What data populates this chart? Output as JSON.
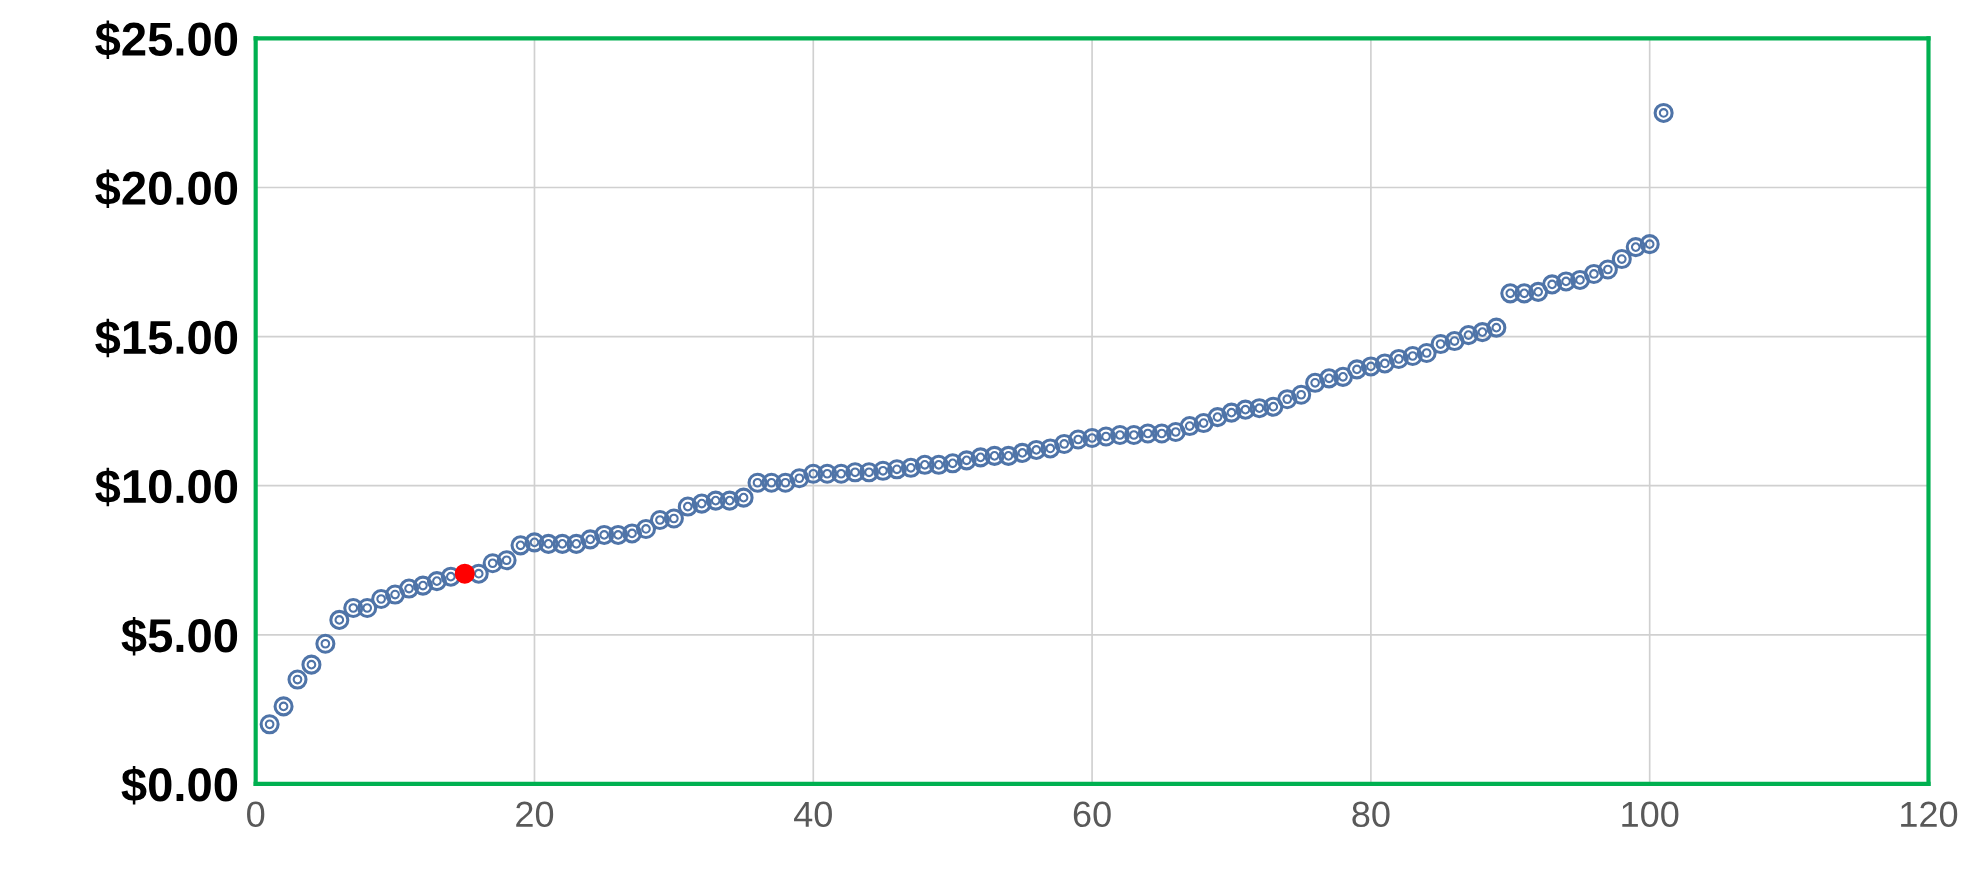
{
  "chart_data": {
    "type": "scatter",
    "marker": "circle",
    "grid": true,
    "xlim": [
      0,
      120
    ],
    "xticks": [
      0,
      20,
      40,
      60,
      80,
      100,
      120
    ],
    "ylim": [
      0,
      25
    ],
    "yticks": [
      {
        "value": 0,
        "label": "$0.00"
      },
      {
        "value": 5,
        "label": "$5.00"
      },
      {
        "value": 10,
        "label": "$10.00"
      },
      {
        "value": 15,
        "label": "$15.00"
      },
      {
        "value": 20,
        "label": "$20.00"
      },
      {
        "value": 25,
        "label": "$25.00"
      }
    ],
    "series": [
      {
        "color": "#4f74a8",
        "x": [
          1,
          2,
          3,
          4,
          5,
          6,
          7,
          8,
          9,
          10,
          11,
          12,
          13,
          14,
          16,
          17,
          18,
          19,
          20,
          21,
          22,
          23,
          24,
          25,
          26,
          27,
          28,
          29,
          30,
          31,
          32,
          33,
          34,
          35,
          36,
          37,
          38,
          39,
          40,
          41,
          42,
          43,
          44,
          45,
          46,
          47,
          48,
          49,
          50,
          51,
          52,
          53,
          54,
          55,
          56,
          57,
          58,
          59,
          60,
          61,
          62,
          63,
          64,
          65,
          66,
          67,
          68,
          69,
          70,
          71,
          72,
          73,
          74,
          75,
          76,
          77,
          78,
          79,
          80,
          81,
          82,
          83,
          84,
          85,
          86,
          87,
          88,
          89,
          90,
          91,
          92,
          93,
          94,
          95,
          96,
          97,
          98,
          99,
          100,
          101
        ],
        "values": [
          2.0,
          2.6,
          3.5,
          4.0,
          4.7,
          5.5,
          5.9,
          5.9,
          6.2,
          6.35,
          6.55,
          6.65,
          6.8,
          6.95,
          7.05,
          7.4,
          7.5,
          8.0,
          8.1,
          8.05,
          8.05,
          8.05,
          8.2,
          8.35,
          8.35,
          8.4,
          8.55,
          8.85,
          8.9,
          9.3,
          9.4,
          9.5,
          9.5,
          9.6,
          10.1,
          10.1,
          10.1,
          10.25,
          10.4,
          10.4,
          10.4,
          10.45,
          10.45,
          10.5,
          10.55,
          10.6,
          10.7,
          10.7,
          10.75,
          10.85,
          10.95,
          11.0,
          11.0,
          11.1,
          11.2,
          11.25,
          11.4,
          11.55,
          11.6,
          11.65,
          11.7,
          11.7,
          11.75,
          11.75,
          11.8,
          12.0,
          12.1,
          12.3,
          12.45,
          12.55,
          12.6,
          12.65,
          12.9,
          13.05,
          13.45,
          13.6,
          13.65,
          13.9,
          14.0,
          14.1,
          14.25,
          14.35,
          14.45,
          14.75,
          14.85,
          15.05,
          15.15,
          15.3,
          16.45,
          16.45,
          16.5,
          16.75,
          16.85,
          16.9,
          17.1,
          17.25,
          17.6,
          18.0,
          18.1,
          22.5
        ]
      },
      {
        "color": "#ff0000",
        "x": [
          15
        ],
        "values": [
          7.05
        ]
      }
    ]
  }
}
